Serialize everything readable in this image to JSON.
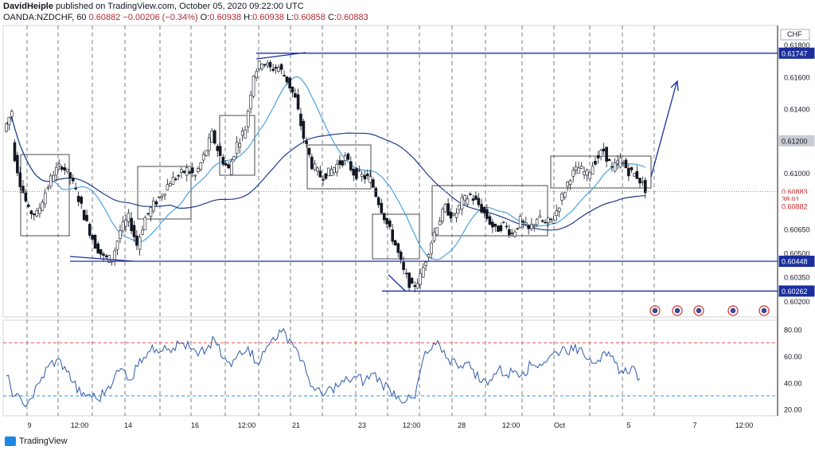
{
  "header": {
    "author": "DavidHeiple",
    "published": "published on TradingView.com, October 05, 2020 09:22:00 UTC",
    "symbol": "OANDA:NZDCHF, 60",
    "last": "0.60882",
    "change": "−0.00206 (−0.34%)",
    "o_label": "O:",
    "o_value": "0.60938",
    "h_label": "H:",
    "h_value": "0.60938",
    "l_label": "L:",
    "l_value": "0.60858",
    "c_label": "C:",
    "c_value": "0.60883"
  },
  "brand": {
    "label": "TradingView"
  },
  "chart_data": [
    {
      "type": "candlestick",
      "currency": "CHF",
      "x_ticks": [
        "9",
        "12:00",
        "14",
        "16",
        "12:00",
        "21",
        "23",
        "12:00",
        "28",
        "12:00",
        "Oct",
        "5",
        "7",
        "12:00"
      ],
      "y_ticks": [
        "0.61800",
        "0.61600",
        "0.61400",
        "0.61200",
        "0.61000",
        "0.60800",
        "0.60650",
        "0.60500",
        "0.60350",
        "0.60200"
      ],
      "ylim": [
        0.601,
        0.6192
      ],
      "price_labels": [
        {
          "value": "0.61747",
          "y": 0.61747,
          "style": "blue"
        },
        {
          "value": "0.61200",
          "y": 0.612,
          "style": "gray"
        },
        {
          "value": "0.60883",
          "y": 0.60883,
          "style": "red"
        },
        {
          "value": "38:01",
          "y": 0.60835,
          "style": "red"
        },
        {
          "value": "0.60882",
          "y": 0.6079,
          "style": "red"
        },
        {
          "value": "0.60448",
          "y": 0.60448,
          "style": "blue"
        },
        {
          "value": "0.60262",
          "y": 0.60262,
          "style": "blue"
        }
      ],
      "horizontal_lines": [
        0.61747,
        0.60448,
        0.60262
      ],
      "price_path": [
        [
          0.6126,
          0.6139
        ],
        [
          0.6118,
          0.6094
        ],
        [
          0.6094,
          0.6076
        ],
        [
          0.6076,
          0.6074
        ],
        [
          0.6074,
          0.6088
        ],
        [
          0.6088,
          0.61
        ],
        [
          0.61,
          0.6105
        ],
        [
          0.6105,
          0.6097
        ],
        [
          0.6097,
          0.6084
        ],
        [
          0.6084,
          0.6068
        ],
        [
          0.6068,
          0.6055
        ],
        [
          0.6055,
          0.6047
        ],
        [
          0.6047,
          0.6046
        ],
        [
          0.6046,
          0.6064
        ],
        [
          0.6064,
          0.6072
        ],
        [
          0.6072,
          0.6055
        ],
        [
          0.6055,
          0.6072
        ],
        [
          0.6072,
          0.608
        ],
        [
          0.608,
          0.6087
        ],
        [
          0.6087,
          0.6095
        ],
        [
          0.6095,
          0.6098
        ],
        [
          0.6098,
          0.6102
        ],
        [
          0.6102,
          0.6098
        ],
        [
          0.6098,
          0.611
        ],
        [
          0.611,
          0.6124
        ],
        [
          0.6124,
          0.611
        ],
        [
          0.611,
          0.6102
        ],
        [
          0.6102,
          0.6118
        ],
        [
          0.6118,
          0.6128
        ],
        [
          0.6128,
          0.6162
        ],
        [
          0.6162,
          0.617
        ],
        [
          0.617,
          0.6165
        ],
        [
          0.6165,
          0.6166
        ],
        [
          0.6166,
          0.6158
        ],
        [
          0.6158,
          0.6146
        ],
        [
          0.6146,
          0.6122
        ],
        [
          0.6122,
          0.6105
        ],
        [
          0.6105,
          0.6098
        ],
        [
          0.6098,
          0.61
        ],
        [
          0.61,
          0.6105
        ],
        [
          0.6105,
          0.6109
        ],
        [
          0.6109,
          0.61
        ],
        [
          0.61,
          0.6098
        ],
        [
          0.6098,
          0.6096
        ],
        [
          0.6096,
          0.6082
        ],
        [
          0.6082,
          0.6068
        ],
        [
          0.6068,
          0.6055
        ],
        [
          0.6055,
          0.6038
        ],
        [
          0.6038,
          0.6028
        ],
        [
          0.6028,
          0.6035
        ],
        [
          0.6035,
          0.6052
        ],
        [
          0.6052,
          0.6068
        ],
        [
          0.6068,
          0.6078
        ],
        [
          0.6078,
          0.6072
        ],
        [
          0.6072,
          0.6082
        ],
        [
          0.6082,
          0.6086
        ],
        [
          0.6086,
          0.608
        ],
        [
          0.608,
          0.6072
        ],
        [
          0.6072,
          0.6064
        ],
        [
          0.6064,
          0.6068
        ],
        [
          0.6068,
          0.6062
        ],
        [
          0.6062,
          0.607
        ],
        [
          0.607,
          0.6064
        ],
        [
          0.6064,
          0.6072
        ],
        [
          0.6072,
          0.6068
        ],
        [
          0.6068,
          0.6072
        ],
        [
          0.6072,
          0.6085
        ],
        [
          0.6085,
          0.6098
        ],
        [
          0.6098,
          0.6103
        ],
        [
          0.6103,
          0.6099
        ],
        [
          0.6099,
          0.6108
        ],
        [
          0.6108,
          0.6114
        ],
        [
          0.6114,
          0.6102
        ],
        [
          0.6102,
          0.6108
        ],
        [
          0.6108,
          0.6101
        ],
        [
          0.6101,
          0.6098
        ],
        [
          0.6098,
          0.609
        ]
      ],
      "indicator": {
        "type": "line",
        "ylim": [
          15,
          87
        ],
        "y_ticks": [
          "80.00",
          "60.00",
          "40.00",
          "20.00"
        ],
        "levels": [
          70,
          30
        ],
        "values": [
          45,
          30,
          24,
          28,
          40,
          52,
          57,
          52,
          40,
          30,
          31,
          27,
          35,
          45,
          50,
          42,
          58,
          63,
          65,
          68,
          66,
          70,
          66,
          60,
          65,
          72,
          58,
          52,
          64,
          67,
          55,
          63,
          74,
          78,
          73,
          63,
          47,
          34,
          30,
          36,
          38,
          42,
          44,
          41,
          47,
          40,
          35,
          30,
          26,
          28,
          58,
          65,
          68,
          58,
          54,
          55,
          50,
          40,
          42,
          50,
          46,
          49,
          48,
          53,
          54,
          58,
          63,
          66,
          64,
          66,
          58,
          57,
          60,
          55,
          47,
          52,
          43
        ]
      }
    }
  ]
}
